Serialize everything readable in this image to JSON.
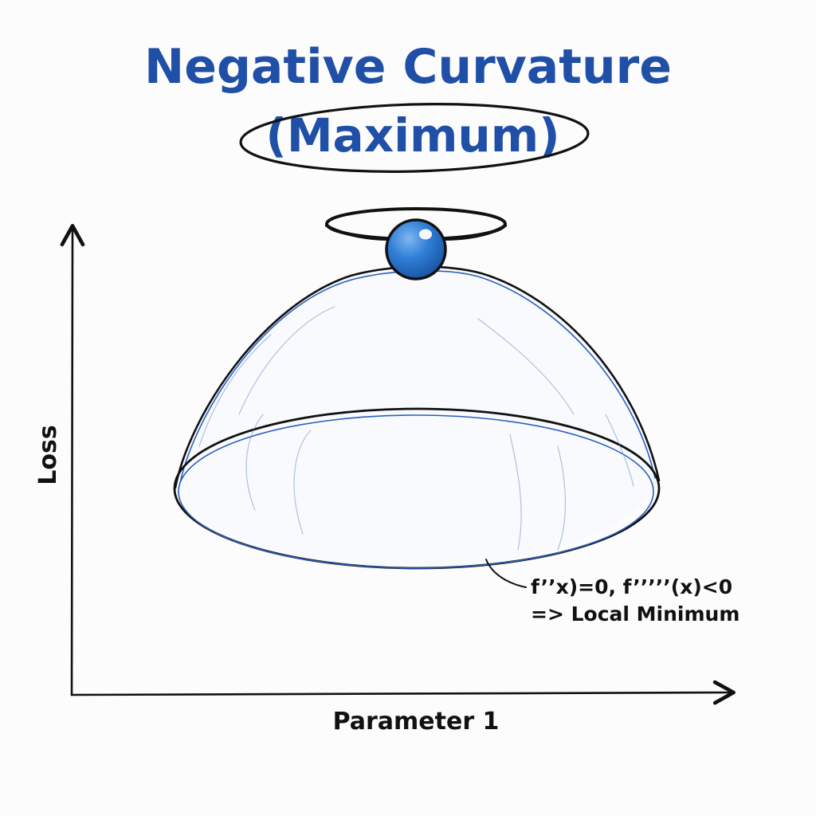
{
  "title": {
    "line1": "Negative Curvature",
    "line2": "(Maximum)"
  },
  "axes": {
    "ylabel": "Loss",
    "xlabel": "Parameter 1"
  },
  "annotation": {
    "line1": "f’’x)=0, f’’’’’(x)<0",
    "line2": "=> Local Minimum"
  },
  "colors": {
    "title": "#1f4fa6",
    "dome_stroke": "#2a5fc0",
    "ball": "#2a74d0",
    "ink": "#111111"
  }
}
